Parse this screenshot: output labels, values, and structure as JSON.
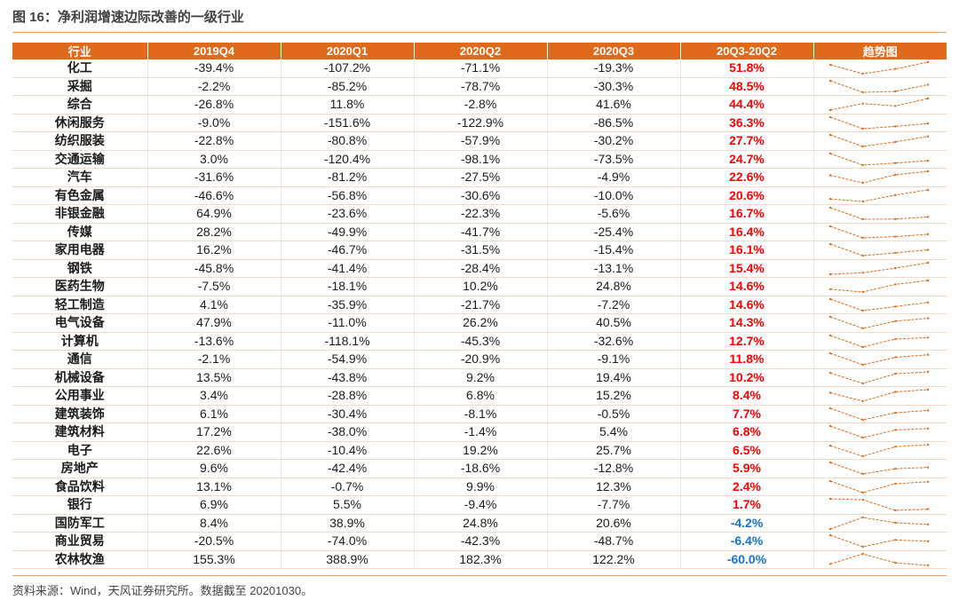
{
  "title": "图 16：净利润增速边际改善的一级行业",
  "source": "资料来源：Wind，天风证券研究所。数据截至 20201030。",
  "colors": {
    "header_bg": "#e06a1c",
    "positive": "#ff0000",
    "negative": "#1a74c9",
    "sparkline": "#e06a1c"
  },
  "chart_data": {
    "type": "table",
    "columns": [
      "行业",
      "2019Q4",
      "2020Q1",
      "2020Q2",
      "2020Q3",
      "20Q3-20Q2",
      "趋势图"
    ],
    "rows": [
      {
        "industry": "化工",
        "values": [
          -39.4,
          -107.2,
          -71.1,
          -19.3
        ],
        "diff": 51.8
      },
      {
        "industry": "采掘",
        "values": [
          -2.2,
          -85.2,
          -78.7,
          -30.3
        ],
        "diff": 48.5
      },
      {
        "industry": "综合",
        "values": [
          -26.8,
          11.8,
          -2.8,
          41.6
        ],
        "diff": 44.4
      },
      {
        "industry": "休闲服务",
        "values": [
          -9.0,
          -151.6,
          -122.9,
          -86.5
        ],
        "diff": 36.3
      },
      {
        "industry": "纺织服装",
        "values": [
          -22.8,
          -80.8,
          -57.9,
          -30.2
        ],
        "diff": 27.7
      },
      {
        "industry": "交通运输",
        "values": [
          3.0,
          -120.4,
          -98.1,
          -73.5
        ],
        "diff": 24.7
      },
      {
        "industry": "汽车",
        "values": [
          -31.6,
          -81.2,
          -27.5,
          -4.9
        ],
        "diff": 22.6
      },
      {
        "industry": "有色金属",
        "values": [
          -46.6,
          -56.8,
          -30.6,
          -10.0
        ],
        "diff": 20.6
      },
      {
        "industry": "非银金融",
        "values": [
          64.9,
          -23.6,
          -22.3,
          -5.6
        ],
        "diff": 16.7
      },
      {
        "industry": "传媒",
        "values": [
          28.2,
          -49.9,
          -41.7,
          -25.4
        ],
        "diff": 16.4
      },
      {
        "industry": "家用电器",
        "values": [
          16.2,
          -46.7,
          -31.5,
          -15.4
        ],
        "diff": 16.1
      },
      {
        "industry": "钢铁",
        "values": [
          -45.8,
          -41.4,
          -28.4,
          -13.1
        ],
        "diff": 15.4
      },
      {
        "industry": "医药生物",
        "values": [
          -7.5,
          -18.1,
          10.2,
          24.8
        ],
        "diff": 14.6
      },
      {
        "industry": "轻工制造",
        "values": [
          4.1,
          -35.9,
          -21.7,
          -7.2
        ],
        "diff": 14.6
      },
      {
        "industry": "电气设备",
        "values": [
          47.9,
          -11.0,
          26.2,
          40.5
        ],
        "diff": 14.3
      },
      {
        "industry": "计算机",
        "values": [
          -13.6,
          -118.1,
          -45.3,
          -32.6
        ],
        "diff": 12.7
      },
      {
        "industry": "通信",
        "values": [
          -2.1,
          -54.9,
          -20.9,
          -9.1
        ],
        "diff": 11.8
      },
      {
        "industry": "机械设备",
        "values": [
          13.5,
          -43.8,
          9.2,
          19.4
        ],
        "diff": 10.2
      },
      {
        "industry": "公用事业",
        "values": [
          3.4,
          -28.8,
          6.8,
          15.2
        ],
        "diff": 8.4
      },
      {
        "industry": "建筑装饰",
        "values": [
          6.1,
          -30.4,
          -8.1,
          -0.5
        ],
        "diff": 7.7
      },
      {
        "industry": "建筑材料",
        "values": [
          17.2,
          -38.0,
          -1.4,
          5.4
        ],
        "diff": 6.8
      },
      {
        "industry": "电子",
        "values": [
          22.6,
          -10.4,
          19.2,
          25.7
        ],
        "diff": 6.5
      },
      {
        "industry": "房地产",
        "values": [
          9.6,
          -42.4,
          -18.6,
          -12.8
        ],
        "diff": 5.9
      },
      {
        "industry": "食品饮料",
        "values": [
          13.1,
          -0.7,
          9.9,
          12.3
        ],
        "diff": 2.4
      },
      {
        "industry": "银行",
        "values": [
          6.9,
          5.5,
          -9.4,
          -7.7
        ],
        "diff": 1.7
      },
      {
        "industry": "国防军工",
        "values": [
          8.4,
          38.9,
          24.8,
          20.6
        ],
        "diff": -4.2
      },
      {
        "industry": "商业贸易",
        "values": [
          -20.5,
          -74.0,
          -42.3,
          -48.7
        ],
        "diff": -6.4
      },
      {
        "industry": "农林牧渔",
        "values": [
          155.3,
          388.9,
          182.3,
          122.2
        ],
        "diff": -60.0
      }
    ]
  }
}
